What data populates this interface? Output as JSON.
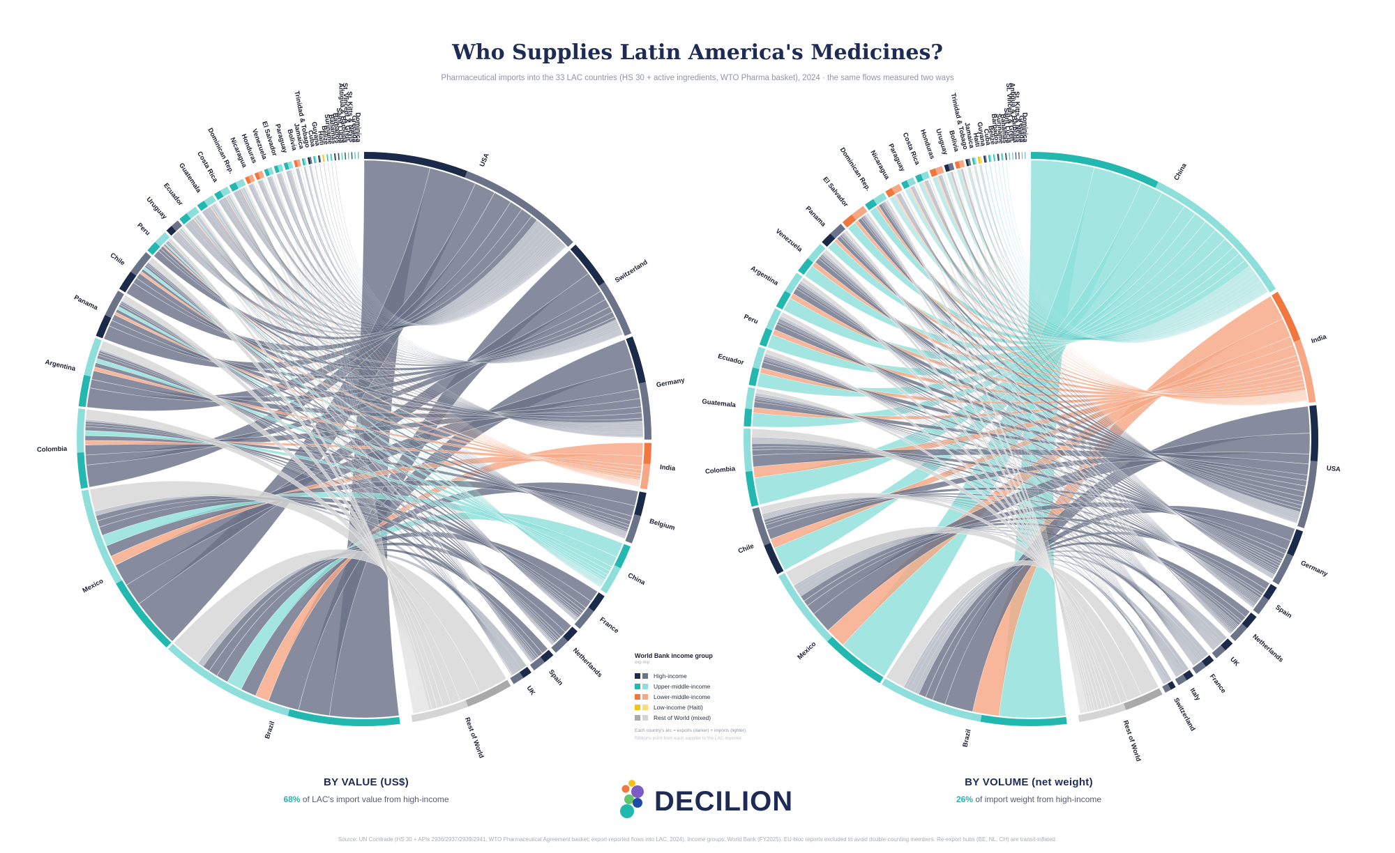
{
  "header": {
    "title": "Who Supplies Latin America's Medicines?",
    "subtitle": "Pharmaceutical imports into the 33 LAC countries (HS 30 + active ingredients, WTO Pharma basket), 2024 · the same flows measured two ways"
  },
  "colors": {
    "high": "#1c2a4a",
    "high_light": "#6b7388",
    "upper": "#22b8b0",
    "upper_light": "#8edfdb",
    "lower": "#f2773e",
    "lower_light": "#f7a784",
    "low": "#f2c318",
    "low_light": "#f8dd7a",
    "row": "#a9a9a9",
    "row_light": "#d5d5d5",
    "accent": "#27b5ad"
  },
  "chart_data": [
    {
      "type": "chord",
      "id": "value",
      "caption": "BY VALUE  (US$)",
      "stat": "68%",
      "stat_text": "of LAC's import value from high-income",
      "suppliers": [
        {
          "name": "USA",
          "group": "high",
          "weight": 20
        },
        {
          "name": "Switzerland",
          "group": "high",
          "weight": 9
        },
        {
          "name": "Germany",
          "group": "high",
          "weight": 9
        },
        {
          "name": "India",
          "group": "lower",
          "weight": 4
        },
        {
          "name": "Belgium",
          "group": "high",
          "weight": 4.5
        },
        {
          "name": "China",
          "group": "upper",
          "weight": 4.5
        },
        {
          "name": "France",
          "group": "high",
          "weight": 3.5
        },
        {
          "name": "Netherlands",
          "group": "high",
          "weight": 2.6
        },
        {
          "name": "Spain",
          "group": "high",
          "weight": 2.1
        },
        {
          "name": "UK",
          "group": "high",
          "weight": 1.8
        },
        {
          "name": "Rest of World",
          "group": "row",
          "weight": 9
        }
      ],
      "importers": [
        {
          "name": "Brazil",
          "group": "upper",
          "weight": 25
        },
        {
          "name": "Mexico",
          "group": "upper",
          "weight": 18
        },
        {
          "name": "Colombia",
          "group": "upper",
          "weight": 8
        },
        {
          "name": "Argentina",
          "group": "upper",
          "weight": 7
        },
        {
          "name": "Panama",
          "group": "high",
          "weight": 5
        },
        {
          "name": "Chile",
          "group": "high",
          "weight": 4.5
        },
        {
          "name": "Peru",
          "group": "upper",
          "weight": 2.5
        },
        {
          "name": "Uruguay",
          "group": "high",
          "weight": 1.5
        },
        {
          "name": "Ecuador",
          "group": "upper",
          "weight": 2
        },
        {
          "name": "Guatemala",
          "group": "upper",
          "weight": 1.8
        },
        {
          "name": "Costa Rica",
          "group": "upper",
          "weight": 1.5
        },
        {
          "name": "Dominican Rep.",
          "group": "upper",
          "weight": 1.5
        },
        {
          "name": "Nicaragua",
          "group": "lower",
          "weight": 0.8
        },
        {
          "name": "Honduras",
          "group": "lower",
          "weight": 0.8
        },
        {
          "name": "Venezuela",
          "group": "upper",
          "weight": 0.8
        },
        {
          "name": "El Salvador",
          "group": "upper",
          "weight": 0.8
        },
        {
          "name": "Paraguay",
          "group": "upper",
          "weight": 0.8
        },
        {
          "name": "Bolivia",
          "group": "lower",
          "weight": 0.6
        },
        {
          "name": "Jamaica",
          "group": "upper",
          "weight": 0.35
        },
        {
          "name": "Trinidad & Tobago",
          "group": "high",
          "weight": 0.35
        },
        {
          "name": "Cuba",
          "group": "upper",
          "weight": 0.25
        },
        {
          "name": "Guyana",
          "group": "high",
          "weight": 0.2
        },
        {
          "name": "Haiti",
          "group": "low",
          "weight": 0.2
        },
        {
          "name": "Belize",
          "group": "upper",
          "weight": 0.15
        },
        {
          "name": "Suriname",
          "group": "upper",
          "weight": 0.15
        },
        {
          "name": "Bahamas",
          "group": "high",
          "weight": 0.15
        },
        {
          "name": "Barbados",
          "group": "high",
          "weight": 0.12
        },
        {
          "name": "Saint Lucia",
          "group": "upper",
          "weight": 0.1
        },
        {
          "name": "Antigua & Barbuda",
          "group": "high",
          "weight": 0.1
        },
        {
          "name": "St. Vincent & Gren.",
          "group": "upper",
          "weight": 0.1
        },
        {
          "name": "St. Kitts & Nevis",
          "group": "high",
          "weight": 0.1
        },
        {
          "name": "Grenada",
          "group": "upper",
          "weight": 0.1
        },
        {
          "name": "Dominica",
          "group": "upper",
          "weight": 0.1
        }
      ]
    },
    {
      "type": "chord",
      "id": "volume",
      "caption": "BY VOLUME  (net weight)",
      "stat": "26%",
      "stat_text": "of import weight from high-income",
      "suppliers": [
        {
          "name": "China",
          "group": "upper",
          "weight": 20
        },
        {
          "name": "India",
          "group": "lower",
          "weight": 8
        },
        {
          "name": "USA",
          "group": "high",
          "weight": 8.5
        },
        {
          "name": "Germany",
          "group": "high",
          "weight": 4
        },
        {
          "name": "Spain",
          "group": "high",
          "weight": 2.2
        },
        {
          "name": "Netherlands",
          "group": "high",
          "weight": 2.2
        },
        {
          "name": "UK",
          "group": "high",
          "weight": 1.5
        },
        {
          "name": "France",
          "group": "high",
          "weight": 1.5
        },
        {
          "name": "Italy",
          "group": "high",
          "weight": 1.2
        },
        {
          "name": "Switzerland",
          "group": "high",
          "weight": 0.8
        },
        {
          "name": "Rest of World",
          "group": "row",
          "weight": 6
        }
      ],
      "importers": [
        {
          "name": "Brazil",
          "group": "upper",
          "weight": 22
        },
        {
          "name": "Mexico",
          "group": "upper",
          "weight": 17
        },
        {
          "name": "Chile",
          "group": "high",
          "weight": 8
        },
        {
          "name": "Colombia",
          "group": "upper",
          "weight": 9
        },
        {
          "name": "Guatemala",
          "group": "upper",
          "weight": 4.5
        },
        {
          "name": "Ecuador",
          "group": "upper",
          "weight": 4.5
        },
        {
          "name": "Peru",
          "group": "upper",
          "weight": 4.5
        },
        {
          "name": "Argentina",
          "group": "upper",
          "weight": 4.5
        },
        {
          "name": "Venezuela",
          "group": "upper",
          "weight": 4
        },
        {
          "name": "Panama",
          "group": "high",
          "weight": 3
        },
        {
          "name": "El Salvador",
          "group": "lower",
          "weight": 3
        },
        {
          "name": "Dominican Rep.",
          "group": "upper",
          "weight": 2.5
        },
        {
          "name": "Nicaragua",
          "group": "lower",
          "weight": 1.8
        },
        {
          "name": "Paraguay",
          "group": "upper",
          "weight": 1.5
        },
        {
          "name": "Costa Rica",
          "group": "upper",
          "weight": 1.5
        },
        {
          "name": "Honduras",
          "group": "lower",
          "weight": 1.5
        },
        {
          "name": "Uruguay",
          "group": "high",
          "weight": 1
        },
        {
          "name": "Bolivia",
          "group": "lower",
          "weight": 1
        },
        {
          "name": "Trinidad & Tobago",
          "group": "high",
          "weight": 0.5
        },
        {
          "name": "Jamaica",
          "group": "upper",
          "weight": 0.4
        },
        {
          "name": "Haiti",
          "group": "low",
          "weight": 0.4
        },
        {
          "name": "Guyana",
          "group": "high",
          "weight": 0.3
        },
        {
          "name": "Cuba",
          "group": "upper",
          "weight": 0.3
        },
        {
          "name": "Belize",
          "group": "upper",
          "weight": 0.2
        },
        {
          "name": "Barbados",
          "group": "high",
          "weight": 0.2
        },
        {
          "name": "Suriname",
          "group": "upper",
          "weight": 0.2
        },
        {
          "name": "Bahamas",
          "group": "high",
          "weight": 0.15
        },
        {
          "name": "Saint Lucia",
          "group": "upper",
          "weight": 0.12
        },
        {
          "name": "St. Vincent & Gren.",
          "group": "upper",
          "weight": 0.1
        },
        {
          "name": "Antigua & Barbuda",
          "group": "high",
          "weight": 0.1
        },
        {
          "name": "St. Kitts & Nevis",
          "group": "high",
          "weight": 0.1
        },
        {
          "name": "Grenada",
          "group": "upper",
          "weight": 0.1
        },
        {
          "name": "Dominica",
          "group": "upper",
          "weight": 0.1
        }
      ]
    }
  ],
  "legend": {
    "title": "World Bank income group",
    "sub": "exp  imp",
    "items": [
      {
        "label": "High-income",
        "group": "high"
      },
      {
        "label": "Upper-middle-income",
        "group": "upper"
      },
      {
        "label": "Lower-middle-income",
        "group": "lower"
      },
      {
        "label": "Low-income  (Haiti)",
        "group": "low"
      },
      {
        "label": "Rest of World (mixed)",
        "group": "row"
      }
    ],
    "note1": "Each country's arc = exports (darker) + imports (lighter).",
    "note2": "Ribbons point from each supplier to the LAC importer."
  },
  "sections": {
    "value_title": "BY VALUE  (US$)",
    "value_pct": "68%",
    "value_text": "of LAC's import value from high-income",
    "volume_title": "BY VOLUME  (net weight)",
    "volume_pct": "26%",
    "volume_text": "of import weight from high-income"
  },
  "brand": {
    "name": "DECILION"
  },
  "footer": {
    "source": "Source: UN Comtrade (HS 30 + APIs 2936/2937/2939/2941, WTO Pharmaceutical Agreement basket; export-reported flows into LAC, 2024). Income groups: World Bank (FY2025). EU-bloc reports excluded to avoid double-counting members. Re-export hubs (BE, NL, CH) are transit-inflated."
  }
}
